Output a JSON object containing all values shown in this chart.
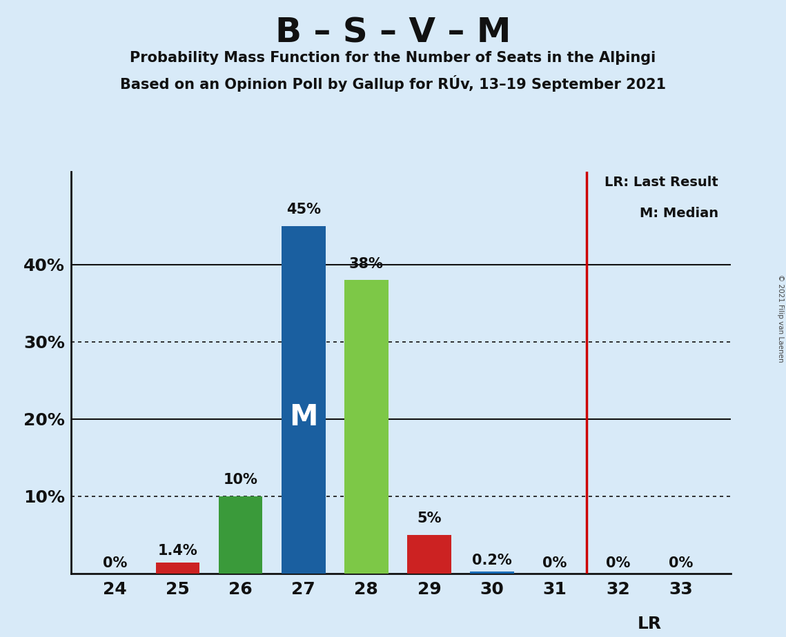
{
  "title": "B – S – V – M",
  "subtitle1": "Probability Mass Function for the Number of Seats in the Alþingi",
  "subtitle2": "Based on an Opinion Poll by Gallup for RÚv, 13–19 September 2021",
  "copyright": "© 2021 Filip van Laenen",
  "seats": [
    24,
    25,
    26,
    27,
    28,
    29,
    30,
    31,
    32,
    33
  ],
  "values": [
    0.0,
    1.4,
    10.0,
    45.0,
    38.0,
    5.0,
    0.2,
    0.0,
    0.0,
    0.0
  ],
  "bar_colors": [
    "#1a6bb5",
    "#cc2222",
    "#3a9a3a",
    "#1a5fa0",
    "#7dc847",
    "#cc2222",
    "#1a6bb5",
    "#1a6bb5",
    "#1a6bb5",
    "#1a6bb5"
  ],
  "label_texts": [
    "0%",
    "1.4%",
    "10%",
    "45%",
    "38%",
    "5%",
    "0.2%",
    "0%",
    "0%",
    "0%"
  ],
  "median_seat": 27,
  "lr_line_x": 31.5,
  "background_color": "#d8eaf8",
  "grid_color": "#111111",
  "dotted_grid_levels": [
    10.0,
    30.0
  ],
  "solid_grid_levels": [
    20.0,
    40.0
  ],
  "yticks": [
    10,
    20,
    30,
    40
  ],
  "ylim": [
    0,
    52
  ],
  "xlim_left": 23.3,
  "xlim_right": 33.8,
  "legend_lr": "LR: Last Result",
  "legend_m": "M: Median",
  "lr_annotation": "LR",
  "bar_width": 0.7
}
